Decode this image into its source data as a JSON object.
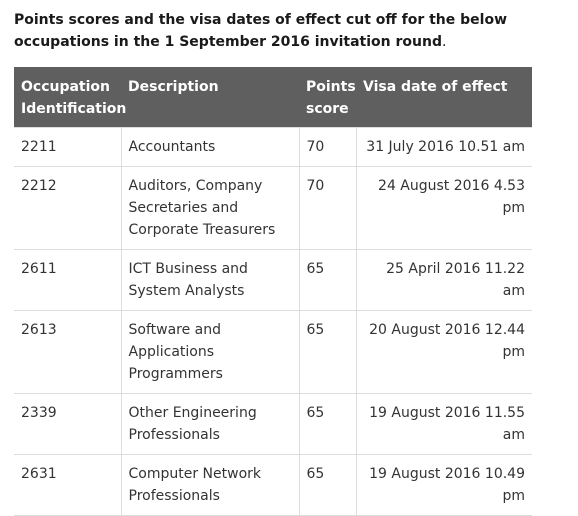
{
  "heading": {
    "bold_text": "Points scores and the visa dates of effect cut off for the below occupations in the 1 September 2016 invitation round",
    "trailing": "."
  },
  "table": {
    "headers": {
      "occupation": "Occupation Identification",
      "description": "Description",
      "points": "Points score",
      "visa_date": "Visa date of effect"
    },
    "rows": [
      {
        "id": "2211",
        "description": "Accountants",
        "points": "70",
        "date": "31 July 2016 10.51 am"
      },
      {
        "id": "2212",
        "description": "Auditors, Company Secretaries and Corporate Treasurers",
        "points": "70",
        "date": "24 August 2016 4.53 pm"
      },
      {
        "id": "2611",
        "description": "ICT Business and System Analysts",
        "points": "65",
        "date": "25 April 2016 11.22 am"
      },
      {
        "id": "2613",
        "description": "Software and Applications Programmers",
        "points": "65",
        "date": "20 August 2016 12.44 pm"
      },
      {
        "id": "2339",
        "description": "Other Engineering Professionals",
        "points": "65",
        "date": "19 August 2016 11.55 am"
      },
      {
        "id": "2631",
        "description": "Computer Network Professionals",
        "points": "65",
        "date": "19 August 2016 10.49 pm"
      }
    ]
  }
}
